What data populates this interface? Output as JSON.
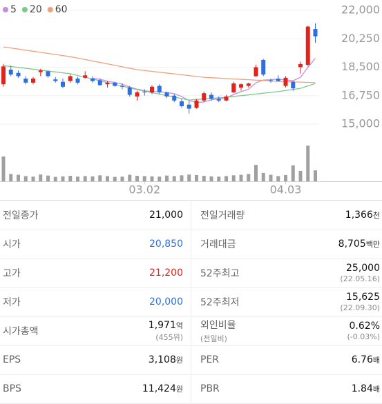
{
  "chart_data": {
    "type": "candlestick",
    "categories": [
      null,
      null,
      null,
      null,
      null,
      null,
      null,
      null,
      null,
      null,
      null,
      null,
      null,
      null,
      null,
      null,
      null,
      null,
      null,
      "03.02",
      null,
      null,
      null,
      null,
      null,
      null,
      null,
      null,
      null,
      null,
      null,
      null,
      null,
      null,
      null,
      null,
      null,
      null,
      "04.03",
      null,
      null,
      null,
      null
    ],
    "open": [
      17450,
      18350,
      18150,
      17800,
      17550,
      18200,
      18250,
      17750,
      17600,
      17650,
      17800,
      17850,
      17800,
      17700,
      17450,
      17550,
      17350,
      17250,
      16700,
      17000,
      16950,
      17350,
      16950,
      16750,
      16400,
      16200,
      16000,
      16450,
      16800,
      16550,
      16450,
      16950,
      17250,
      17350,
      17950,
      18950,
      17700,
      17800,
      17350,
      17600,
      18500,
      18650,
      20850
    ],
    "high": [
      18700,
      18600,
      18300,
      17950,
      17900,
      18400,
      18300,
      17900,
      17800,
      18050,
      17900,
      18250,
      17950,
      17800,
      17650,
      17600,
      17500,
      17350,
      17050,
      17150,
      17400,
      17450,
      17000,
      16850,
      16550,
      16400,
      16550,
      17000,
      16950,
      16700,
      16800,
      17600,
      17500,
      17550,
      18650,
      19000,
      17800,
      18000,
      17950,
      17650,
      18850,
      21050,
      21200
    ],
    "low": [
      17300,
      17950,
      17850,
      17450,
      17450,
      17950,
      17850,
      17550,
      17200,
      17550,
      17450,
      17800,
      17550,
      17350,
      17250,
      17300,
      17150,
      16700,
      16450,
      16750,
      16850,
      16850,
      16600,
      16350,
      16000,
      15650,
      15950,
      16350,
      16450,
      16350,
      16400,
      16900,
      17050,
      17250,
      17900,
      17950,
      17550,
      17600,
      17250,
      17050,
      18100,
      18550,
      20000
    ],
    "close": [
      18550,
      18050,
      17950,
      17550,
      17800,
      18300,
      17950,
      17650,
      17300,
      17950,
      17550,
      18000,
      17650,
      17400,
      17550,
      17350,
      17300,
      16800,
      16950,
      16950,
      17300,
      16950,
      16700,
      16450,
      16100,
      15950,
      16450,
      16900,
      16550,
      16450,
      16700,
      17500,
      17450,
      17500,
      18500,
      18050,
      17650,
      17650,
      17850,
      17200,
      18700,
      21000,
      20400
    ],
    "up_color": "#e0231c",
    "down_color": "#2f6ee0",
    "series": [
      {
        "name": "5",
        "color": "#c88be6",
        "values": [
          null,
          null,
          null,
          null,
          null,
          null,
          null,
          null,
          null,
          null,
          null,
          null,
          17820,
          17760,
          17640,
          17560,
          17460,
          17280,
          17150,
          17050,
          17010,
          16990,
          16940,
          16870,
          16700,
          16440,
          16330,
          16360,
          16490,
          16560,
          16610,
          16820,
          17000,
          17140,
          17540,
          17710,
          17730,
          17770,
          17710,
          17670,
          17880,
          18500,
          19050
        ]
      },
      {
        "name": "20",
        "color": "#7cc98a",
        "values": [
          18600,
          18544,
          18489,
          18433,
          18378,
          18322,
          18267,
          18211,
          18156,
          18100,
          17991,
          17882,
          17773,
          17664,
          17556,
          17447,
          17338,
          17229,
          17120,
          17029,
          16937,
          16846,
          16754,
          16663,
          16571,
          16480,
          16514,
          16548,
          16582,
          16616,
          16650,
          16700,
          16750,
          16800,
          16850,
          16900,
          16950,
          17000,
          17070,
          17130,
          17200,
          17350,
          17500
        ]
      },
      {
        "name": "60",
        "color": "#f0a07c",
        "values": [
          19750,
          19683,
          19617,
          19550,
          19483,
          19417,
          19350,
          19283,
          19217,
          19150,
          19061,
          18972,
          18883,
          18794,
          18706,
          18617,
          18528,
          18439,
          18350,
          18298,
          18246,
          18194,
          18142,
          18090,
          18038,
          17986,
          17934,
          17880,
          17855,
          17830,
          17805,
          17780,
          17755,
          17730,
          17705,
          17680,
          17655,
          17630,
          17614,
          17598,
          17582,
          17566,
          17550
        ]
      }
    ],
    "volume": {
      "color": "#a0a0a0",
      "ylim": [
        0,
        1400
      ],
      "values": [
        950,
        280,
        250,
        200,
        180,
        260,
        220,
        170,
        190,
        210,
        180,
        200,
        190,
        230,
        200,
        170,
        180,
        250,
        210,
        200,
        190,
        180,
        220,
        200,
        230,
        260,
        240,
        210,
        190,
        180,
        200,
        230,
        250,
        280,
        630,
        320,
        250,
        200,
        240,
        610,
        400,
        1366,
        420
      ]
    },
    "ylim": [
      15000,
      22000
    ],
    "yticks": [
      {
        "value": 15000,
        "label": "15,000"
      },
      {
        "value": 16750,
        "label": "16,750"
      },
      {
        "value": 18500,
        "label": "18,500"
      },
      {
        "value": 20250,
        "label": "20,250"
      },
      {
        "value": 22000,
        "label": "22,000"
      }
    ],
    "grid": true
  },
  "table": {
    "rows": [
      [
        {
          "label": "전일종가",
          "value": "21,000"
        },
        {
          "label": "전일거래량",
          "value": "1,366",
          "unit": "천"
        }
      ],
      [
        {
          "label": "시가",
          "value": "20,850",
          "color": "#2f6ee0"
        },
        {
          "label": "거래대금",
          "value": "8,705",
          "unit": "백만"
        }
      ],
      [
        {
          "label": "고가",
          "value": "21,200",
          "color": "#e0231c"
        },
        {
          "label": "52주최고",
          "value": "25,000",
          "note": "(22.05.16)"
        }
      ],
      [
        {
          "label": "저가",
          "value": "20,000",
          "color": "#2f6ee0"
        },
        {
          "label": "52주최저",
          "value": "15,625",
          "note": "(22.09.30)"
        }
      ],
      [
        {
          "label": "시가총액",
          "value": "1,971",
          "unit": "억",
          "note": "(455위)"
        },
        {
          "label": "외인비율",
          "sublabel": "(전일비)",
          "value": "0.62%",
          "note": "(-0.03%)"
        }
      ],
      [
        {
          "label": "EPS",
          "value": "3,108",
          "unit": "원"
        },
        {
          "label": "PER",
          "value": "6.76",
          "unit": "배"
        }
      ],
      [
        {
          "label": "BPS",
          "value": "11,424",
          "unit": "원"
        },
        {
          "label": "PBR",
          "value": "1.84",
          "unit": "배"
        }
      ]
    ]
  }
}
